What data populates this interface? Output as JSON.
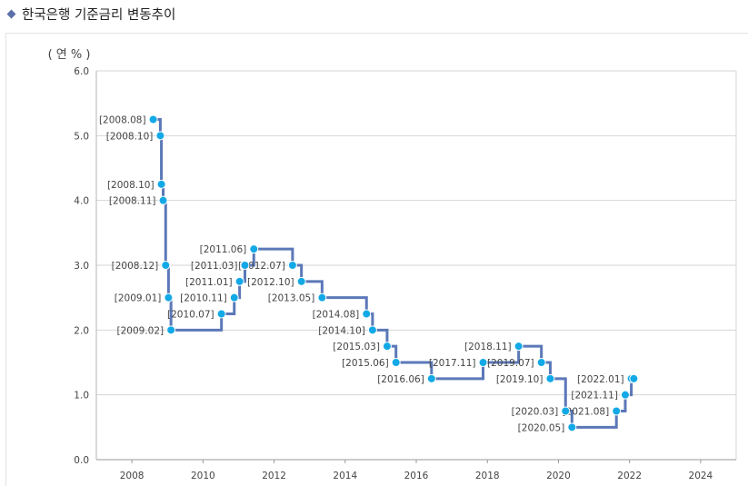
{
  "header": {
    "title": "한국은행 기준금리 변동추이"
  },
  "colors": {
    "line": "#5b78b8",
    "point": "#12a9e6",
    "grid": "#d6d6d6",
    "text": "#444444",
    "title_marker": "#5b6fa8"
  },
  "chart_data": {
    "type": "line",
    "step": true,
    "title": "한국은행 기준금리 변동추이",
    "ylabel": "( 연 % )",
    "xlabel": "",
    "ylim": [
      0,
      6
    ],
    "xlim": [
      2007,
      2025
    ],
    "yticks": [
      "0.0",
      "1.0",
      "2.0",
      "3.0",
      "4.0",
      "5.0",
      "6.0"
    ],
    "xticks": [
      "2008",
      "2010",
      "2012",
      "2014",
      "2016",
      "2018",
      "2020",
      "2022",
      "2024"
    ],
    "series": [
      {
        "name": "기준금리",
        "points": [
          {
            "label": "[2008.08]",
            "x": 2008.6,
            "y": 5.25
          },
          {
            "label": "[2008.10]",
            "x": 2008.8,
            "y": 5.0
          },
          {
            "label": "[2008.10]",
            "x": 2008.83,
            "y": 4.25
          },
          {
            "label": "[2008.11]",
            "x": 2008.88,
            "y": 4.0
          },
          {
            "label": "[2008.12]",
            "x": 2008.95,
            "y": 3.0
          },
          {
            "label": "[2009.01]",
            "x": 2009.03,
            "y": 2.5
          },
          {
            "label": "[2009.02]",
            "x": 2009.1,
            "y": 2.0
          },
          {
            "label": "[2010.07]",
            "x": 2010.52,
            "y": 2.25
          },
          {
            "label": "[2010.11]",
            "x": 2010.88,
            "y": 2.5
          },
          {
            "label": "[2011.01]",
            "x": 2011.03,
            "y": 2.75
          },
          {
            "label": "[2011.03]",
            "x": 2011.18,
            "y": 3.0
          },
          {
            "label": "[2011.06]",
            "x": 2011.43,
            "y": 3.25
          },
          {
            "label": "[2012.07]",
            "x": 2012.52,
            "y": 3.0
          },
          {
            "label": "[2012.10]",
            "x": 2012.77,
            "y": 2.75
          },
          {
            "label": "[2013.05]",
            "x": 2013.35,
            "y": 2.5
          },
          {
            "label": "[2014.08]",
            "x": 2014.6,
            "y": 2.25
          },
          {
            "label": "[2014.10]",
            "x": 2014.77,
            "y": 2.0
          },
          {
            "label": "[2015.03]",
            "x": 2015.18,
            "y": 1.75
          },
          {
            "label": "[2015.06]",
            "x": 2015.43,
            "y": 1.5
          },
          {
            "label": "[2016.06]",
            "x": 2016.43,
            "y": 1.25
          },
          {
            "label": "[2017.11]",
            "x": 2017.88,
            "y": 1.5
          },
          {
            "label": "[2018.11]",
            "x": 2018.88,
            "y": 1.75
          },
          {
            "label": "[2019.07]",
            "x": 2019.52,
            "y": 1.5
          },
          {
            "label": "[2019.10]",
            "x": 2019.77,
            "y": 1.25
          },
          {
            "label": "[2020.03]",
            "x": 2020.2,
            "y": 0.75
          },
          {
            "label": "[2020.05]",
            "x": 2020.38,
            "y": 0.5
          },
          {
            "label": "[2021.08]",
            "x": 2021.63,
            "y": 0.75
          },
          {
            "label": "[2021.11]",
            "x": 2021.88,
            "y": 1.0
          },
          {
            "label": "[2022.01]",
            "x": 2022.05,
            "y": 1.25
          },
          {
            "label": "",
            "x": 2022.12,
            "y": 1.25
          }
        ]
      }
    ]
  }
}
